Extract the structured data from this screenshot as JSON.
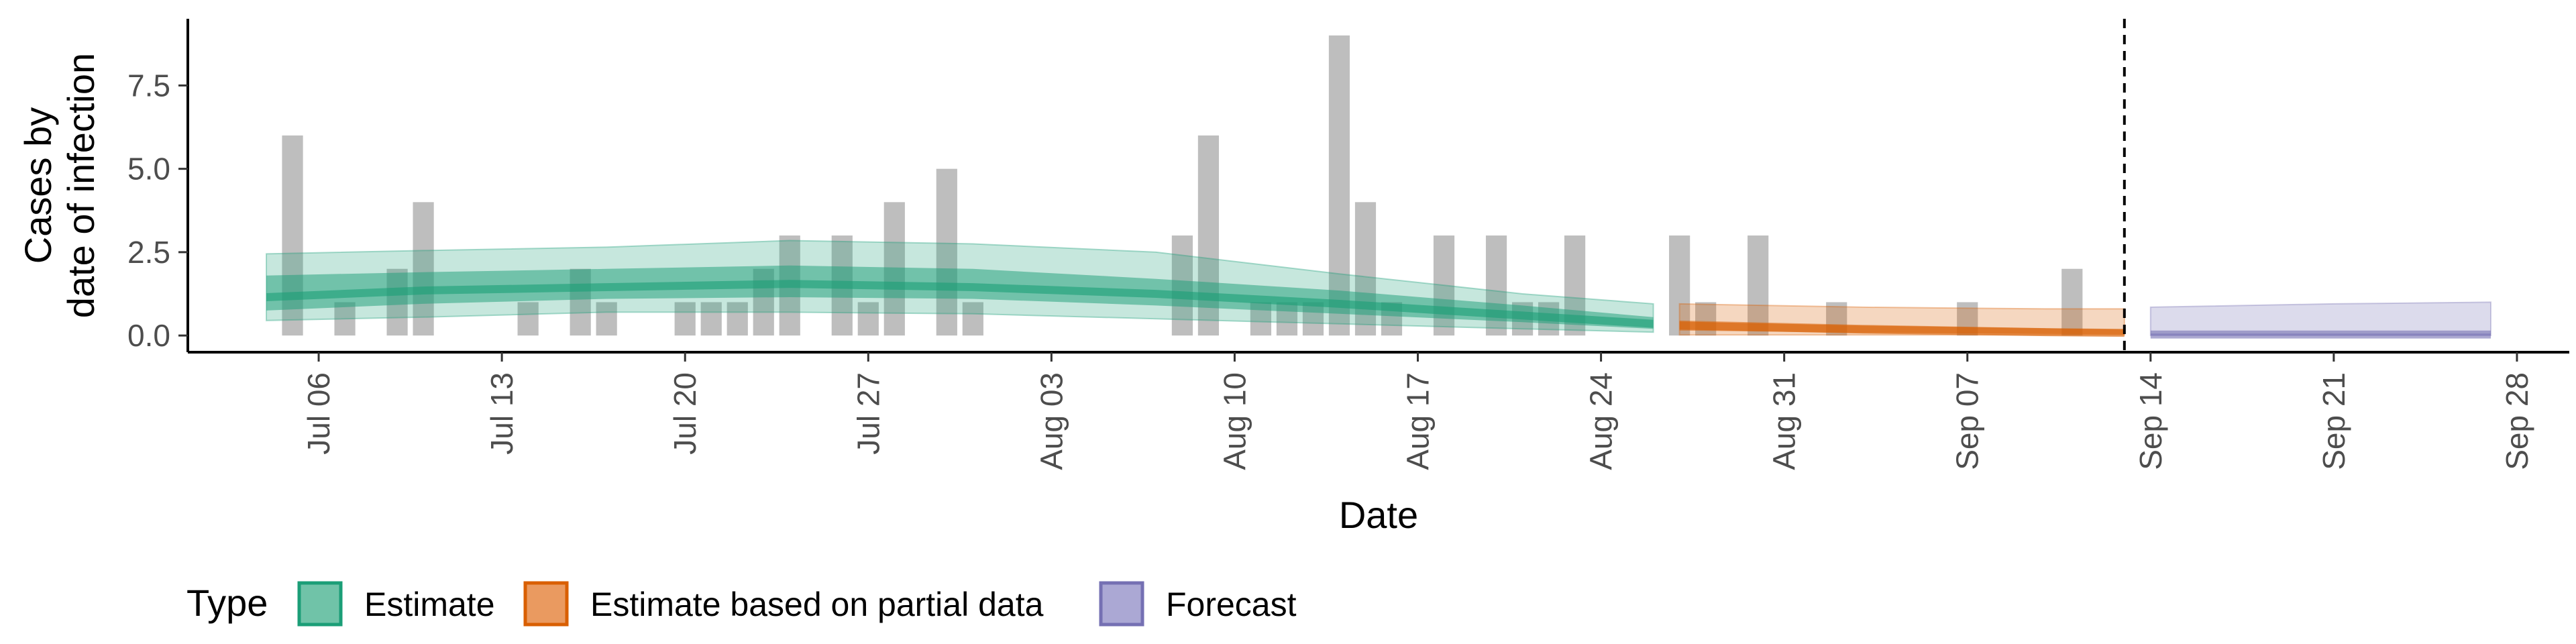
{
  "chart_data": {
    "type": "bar",
    "title": "",
    "xlabel": "Date",
    "ylabel": [
      "Cases by",
      "date of infection"
    ],
    "x_range": [
      "2020-07-01",
      "2020-09-30"
    ],
    "ylim": [
      -0.5,
      9.5
    ],
    "y_ticks": [
      {
        "value": 0,
        "label": "0.0"
      },
      {
        "value": 2.5,
        "label": "2.5"
      },
      {
        "value": 5,
        "label": "5.0"
      },
      {
        "value": 7.5,
        "label": "7.5"
      }
    ],
    "x_ticks": [
      {
        "date": "2020-07-06",
        "label": "Jul 06"
      },
      {
        "date": "2020-07-13",
        "label": "Jul 13"
      },
      {
        "date": "2020-07-20",
        "label": "Jul 20"
      },
      {
        "date": "2020-07-27",
        "label": "Jul 27"
      },
      {
        "date": "2020-08-03",
        "label": "Aug 03"
      },
      {
        "date": "2020-08-10",
        "label": "Aug 10"
      },
      {
        "date": "2020-08-17",
        "label": "Aug 17"
      },
      {
        "date": "2020-08-24",
        "label": "Aug 24"
      },
      {
        "date": "2020-08-31",
        "label": "Aug 31"
      },
      {
        "date": "2020-09-07",
        "label": "Sep 07"
      },
      {
        "date": "2020-09-14",
        "label": "Sep 14"
      },
      {
        "date": "2020-09-21",
        "label": "Sep 21"
      },
      {
        "date": "2020-09-28",
        "label": "Sep 28"
      }
    ],
    "bar_color": "#bebebe",
    "reported_cases": [
      {
        "date": "2020-07-05",
        "value": 6
      },
      {
        "date": "2020-07-07",
        "value": 1
      },
      {
        "date": "2020-07-09",
        "value": 2
      },
      {
        "date": "2020-07-10",
        "value": 4
      },
      {
        "date": "2020-07-14",
        "value": 1
      },
      {
        "date": "2020-07-16",
        "value": 2
      },
      {
        "date": "2020-07-17",
        "value": 1
      },
      {
        "date": "2020-07-20",
        "value": 1
      },
      {
        "date": "2020-07-21",
        "value": 1
      },
      {
        "date": "2020-07-22",
        "value": 1
      },
      {
        "date": "2020-07-23",
        "value": 2
      },
      {
        "date": "2020-07-24",
        "value": 3
      },
      {
        "date": "2020-07-26",
        "value": 3
      },
      {
        "date": "2020-07-27",
        "value": 1
      },
      {
        "date": "2020-07-28",
        "value": 4
      },
      {
        "date": "2020-07-30",
        "value": 5
      },
      {
        "date": "2020-07-31",
        "value": 1
      },
      {
        "date": "2020-08-08",
        "value": 3
      },
      {
        "date": "2020-08-09",
        "value": 6
      },
      {
        "date": "2020-08-11",
        "value": 1
      },
      {
        "date": "2020-08-12",
        "value": 1
      },
      {
        "date": "2020-08-13",
        "value": 1
      },
      {
        "date": "2020-08-14",
        "value": 9
      },
      {
        "date": "2020-08-15",
        "value": 4
      },
      {
        "date": "2020-08-16",
        "value": 1
      },
      {
        "date": "2020-08-18",
        "value": 3
      },
      {
        "date": "2020-08-20",
        "value": 3
      },
      {
        "date": "2020-08-21",
        "value": 1
      },
      {
        "date": "2020-08-22",
        "value": 1
      },
      {
        "date": "2020-08-23",
        "value": 3
      },
      {
        "date": "2020-08-27",
        "value": 3
      },
      {
        "date": "2020-08-28",
        "value": 1
      },
      {
        "date": "2020-08-30",
        "value": 3
      },
      {
        "date": "2020-09-02",
        "value": 1
      },
      {
        "date": "2020-09-07",
        "value": 1
      },
      {
        "date": "2020-09-11",
        "value": 2
      }
    ],
    "forecast_date": "2020-09-13",
    "series": [
      {
        "name": "Estimate",
        "fill": "#1b9e77",
        "dates": [
          "2020-07-04",
          "2020-07-10",
          "2020-07-17",
          "2020-07-24",
          "2020-07-31",
          "2020-08-07",
          "2020-08-14",
          "2020-08-21",
          "2020-08-26"
        ],
        "median": [
          1.15,
          1.35,
          1.45,
          1.55,
          1.45,
          1.25,
          0.95,
          0.6,
          0.35
        ],
        "inner_low": [
          0.75,
          0.95,
          1.1,
          1.15,
          1.1,
          0.9,
          0.65,
          0.4,
          0.2
        ],
        "inner_high": [
          1.8,
          1.9,
          2.0,
          2.1,
          2.0,
          1.7,
          1.35,
          0.9,
          0.55
        ],
        "outer_low": [
          0.45,
          0.55,
          0.7,
          0.7,
          0.65,
          0.5,
          0.35,
          0.2,
          0.1
        ],
        "outer_high": [
          2.45,
          2.55,
          2.65,
          2.85,
          2.75,
          2.5,
          1.85,
          1.25,
          0.95
        ]
      },
      {
        "name": "Estimate based on partial data",
        "fill": "#d95f02",
        "dates": [
          "2020-08-27",
          "2020-09-03",
          "2020-09-10",
          "2020-09-13"
        ],
        "median": [
          0.3,
          0.18,
          0.1,
          0.08
        ],
        "inner_low": [
          0.15,
          0.08,
          0.05,
          0.04
        ],
        "inner_high": [
          0.45,
          0.32,
          0.22,
          0.18
        ],
        "outer_low": [
          0.02,
          0.02,
          0.02,
          0.02
        ],
        "outer_high": [
          0.95,
          0.85,
          0.8,
          0.8
        ]
      },
      {
        "name": "Forecast",
        "fill": "#7570b3",
        "dates": [
          "2020-09-14",
          "2020-09-21",
          "2020-09-27"
        ],
        "median": [
          0.03,
          0.03,
          0.03
        ],
        "inner_low": [
          0.01,
          0.01,
          0.01
        ],
        "inner_high": [
          0.06,
          0.06,
          0.06
        ],
        "outer_low": [
          0.0,
          0.0,
          0.0
        ],
        "outer_high": [
          0.85,
          0.95,
          1.0
        ]
      }
    ],
    "legend": {
      "title": "Type",
      "position": "bottom",
      "items": [
        {
          "label": "Estimate",
          "fill": "#70c3a8",
          "stroke": "#1b9e77"
        },
        {
          "label": "Estimate based on partial data",
          "fill": "#ea9a60",
          "stroke": "#d95f02"
        },
        {
          "label": "Forecast",
          "fill": "#aba8d4",
          "stroke": "#7570b3"
        }
      ]
    }
  }
}
